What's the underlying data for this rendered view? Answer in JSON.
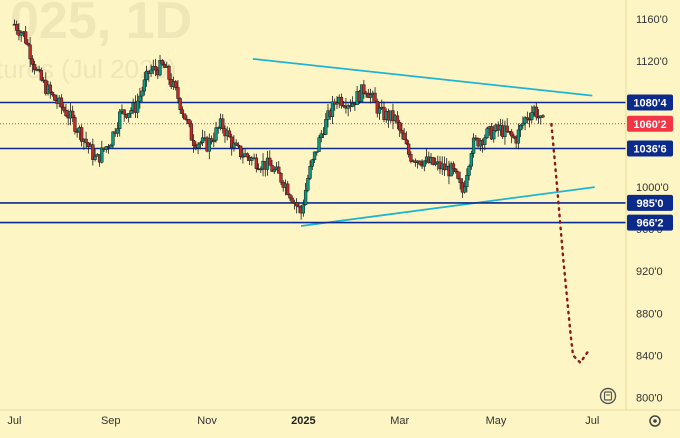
{
  "watermark": {
    "line1": "025, 1D",
    "line2": "tures (Jul 2025)"
  },
  "chart_data": {
    "type": "candlestick",
    "y_ticks": [
      "1160'0",
      "1120'0",
      "1080'0",
      "1040'0",
      "1000'0",
      "960'0",
      "920'0",
      "880'0",
      "840'0",
      "800'0"
    ],
    "y_tick_values": [
      1160,
      1120,
      1080,
      1040,
      1000,
      960,
      920,
      880,
      840,
      800
    ],
    "ylim": [
      788,
      1178
    ],
    "x_ticks": [
      "Jul",
      "Sep",
      "Nov",
      "2025",
      "Mar",
      "May",
      "Jul"
    ],
    "x_tick_bold": [
      false,
      false,
      false,
      true,
      false,
      false,
      false
    ],
    "x_tick_months": [
      0,
      2,
      4,
      6,
      8,
      10,
      12
    ],
    "xlim": [
      -0.3,
      12.7
    ],
    "horizontal_levels": [
      {
        "label": "1080'4",
        "value": 1080.5,
        "color": "#0c2a8c",
        "style": "solid"
      },
      {
        "label": "1036'6",
        "value": 1036.75,
        "color": "#0c2a8c",
        "style": "solid"
      },
      {
        "label": "985'0",
        "value": 985,
        "color": "#0c2a8c",
        "style": "solid"
      },
      {
        "label": "966'2",
        "value": 966.25,
        "color": "#0c2a8c",
        "style": "solid"
      },
      {
        "label": "1060'2",
        "value": 1060.25,
        "color": "#f23645",
        "style": "dotted"
      }
    ],
    "trendlines": [
      {
        "name": "upper",
        "x": [
          4.95,
          12.0
        ],
        "y": [
          1122,
          1087
        ],
        "color": "#1fb5d2"
      },
      {
        "name": "lower",
        "x": [
          5.95,
          12.05
        ],
        "y": [
          963,
          1000
        ],
        "color": "#1fb5d2"
      }
    ],
    "forecast_path": {
      "color": "#8b1a1a",
      "x": [
        11.15,
        11.25,
        11.4,
        11.55,
        11.6,
        11.75,
        11.9
      ],
      "y": [
        1060,
        1010,
        930,
        860,
        840,
        833,
        843
      ]
    },
    "candles_ohlc_monthly_anchor": {
      "x": [
        0,
        0.2,
        0.5,
        0.8,
        1.1,
        1.4,
        1.7,
        2.0,
        2.2,
        2.5,
        2.8,
        3.1,
        3.4,
        3.7,
        4.0,
        4.3,
        4.6,
        5.0,
        5.3,
        5.6,
        5.95,
        6.1,
        6.4,
        6.7,
        7.0,
        7.3,
        7.6,
        7.9,
        8.2,
        8.5,
        8.8,
        9.1,
        9.3,
        9.5,
        9.8,
        10.1,
        10.4,
        10.6,
        10.8,
        10.95
      ],
      "y": [
        1155,
        1145,
        1105,
        1085,
        1070,
        1050,
        1025,
        1045,
        1070,
        1075,
        1110,
        1115,
        1085,
        1045,
        1040,
        1060,
        1035,
        1025,
        1020,
        1005,
        975,
        1010,
        1055,
        1085,
        1080,
        1095,
        1070,
        1065,
        1030,
        1025,
        1020,
        1015,
        995,
        1040,
        1050,
        1055,
        1045,
        1065,
        1075,
        1060
      ]
    }
  }
}
